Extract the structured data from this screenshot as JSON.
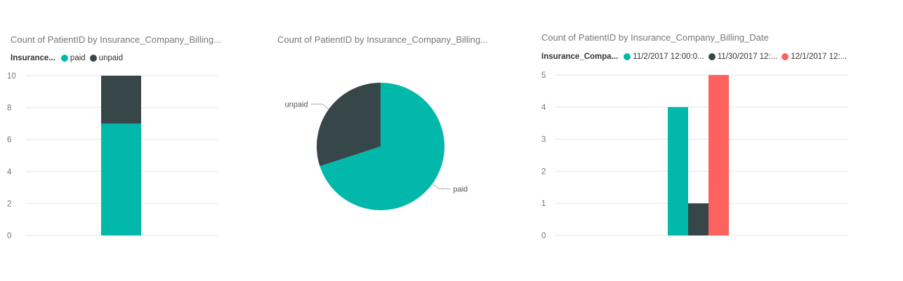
{
  "colors": {
    "paid": "#01B8AA",
    "unpaid": "#374649",
    "third": "#FD625E",
    "grid": "#e6e6e6",
    "axis_text": "#777777"
  },
  "visual1": {
    "title": "Count of PatientID by Insurance_Company_Billing...",
    "legend_title": "Insurance...",
    "legend": [
      "paid",
      "unpaid"
    ]
  },
  "visual2": {
    "title": "Count of PatientID by Insurance_Company_Billing...",
    "labels": [
      "paid",
      "unpaid"
    ]
  },
  "visual3": {
    "title": "Count of PatientID by Insurance_Company_Billing_Date",
    "legend_title": "Insurance_Compa...",
    "legend": [
      "11/2/2017 12:00:0...",
      "11/30/2017 12:...",
      "12/1/2017 12:..."
    ]
  },
  "chart_data": [
    {
      "type": "bar",
      "stacked": true,
      "title": "Count of PatientID by Insurance_Company_Billing...",
      "legend_title": "Insurance...",
      "categories": [
        ""
      ],
      "series": [
        {
          "name": "paid",
          "values": [
            7
          ],
          "color": "#01B8AA"
        },
        {
          "name": "unpaid",
          "values": [
            3
          ],
          "color": "#374649"
        }
      ],
      "ylim": [
        0,
        10
      ],
      "yticks": [
        0,
        2,
        4,
        6,
        8,
        10
      ],
      "grid": true,
      "legend_position": "top-left"
    },
    {
      "type": "pie",
      "title": "Count of PatientID by Insurance_Company_Billing...",
      "slices": [
        {
          "name": "paid",
          "value": 7,
          "color": "#01B8AA"
        },
        {
          "name": "unpaid",
          "value": 3,
          "color": "#374649"
        }
      ]
    },
    {
      "type": "bar",
      "stacked": false,
      "title": "Count of PatientID by Insurance_Company_Billing_Date",
      "legend_title": "Insurance_Compa...",
      "categories": [
        ""
      ],
      "series": [
        {
          "name": "11/2/2017 12:00:0...",
          "values": [
            4
          ],
          "color": "#01B8AA"
        },
        {
          "name": "11/30/2017 12:...",
          "values": [
            1
          ],
          "color": "#374649"
        },
        {
          "name": "12/1/2017 12:...",
          "values": [
            5
          ],
          "color": "#FD625E"
        }
      ],
      "ylim": [
        0,
        5
      ],
      "yticks": [
        0,
        1,
        2,
        3,
        4,
        5
      ],
      "grid": true,
      "legend_position": "top-left"
    }
  ]
}
